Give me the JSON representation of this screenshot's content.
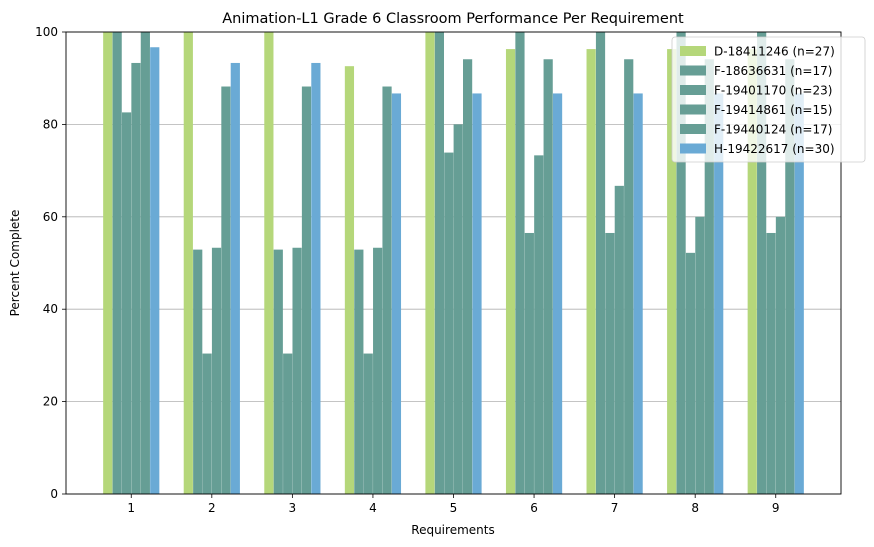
{
  "chart_data": {
    "type": "bar",
    "title": "Animation-L1 Grade 6 Classroom Performance Per Requirement",
    "xlabel": "Requirements",
    "ylabel": "Percent Complete",
    "ylim": [
      0,
      100
    ],
    "yticks": [
      0,
      20,
      40,
      60,
      80,
      100
    ],
    "grid": "y",
    "legend_position": "top-right",
    "categories": [
      "1",
      "2",
      "3",
      "4",
      "5",
      "6",
      "7",
      "8",
      "9"
    ],
    "series": [
      {
        "name": "D-18411246 (n=27)",
        "color": "#b5d77a",
        "values": [
          100,
          100,
          100,
          92.6,
          100,
          96.3,
          96.3,
          96.3,
          96.3
        ]
      },
      {
        "name": "F-18636631 (n=17)",
        "color": "#669e95",
        "values": [
          100,
          52.9,
          52.9,
          52.9,
          100,
          100,
          100,
          100,
          100
        ]
      },
      {
        "name": "F-19401170 (n=23)",
        "color": "#669e95",
        "values": [
          82.6,
          30.4,
          30.4,
          30.4,
          73.9,
          56.5,
          56.5,
          52.2,
          56.5
        ]
      },
      {
        "name": "F-19414861 (n=15)",
        "color": "#669e95",
        "values": [
          93.3,
          53.3,
          53.3,
          53.3,
          80,
          73.3,
          66.7,
          60,
          60
        ]
      },
      {
        "name": "F-19440124 (n=17)",
        "color": "#669e95",
        "values": [
          100,
          88.2,
          88.2,
          88.2,
          94.1,
          94.1,
          94.1,
          94.1,
          94.1
        ]
      },
      {
        "name": "H-19422617 (n=30)",
        "color": "#6aaad5",
        "values": [
          96.7,
          93.3,
          93.3,
          86.7,
          86.7,
          86.7,
          86.7,
          86.7,
          86.7
        ]
      }
    ]
  }
}
